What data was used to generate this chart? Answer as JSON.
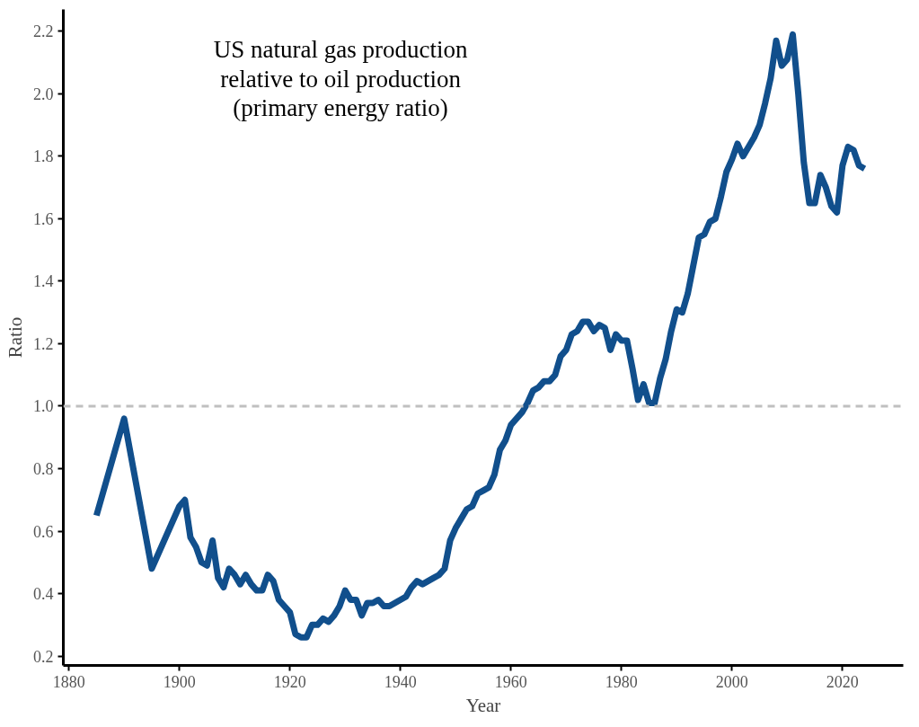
{
  "chart_data": {
    "type": "line",
    "title": "US natural gas production relative to oil production",
    "subtitle": "(primary energy ratio)",
    "xlabel": "Year",
    "ylabel": "Ratio",
    "x": [
      1885,
      1890,
      1895,
      1900,
      1901,
      1902,
      1903,
      1904,
      1905,
      1906,
      1907,
      1908,
      1909,
      1910,
      1911,
      1912,
      1913,
      1914,
      1915,
      1916,
      1917,
      1918,
      1919,
      1920,
      1921,
      1922,
      1923,
      1924,
      1925,
      1926,
      1927,
      1928,
      1929,
      1930,
      1931,
      1932,
      1933,
      1934,
      1935,
      1936,
      1937,
      1938,
      1939,
      1940,
      1941,
      1942,
      1943,
      1944,
      1945,
      1946,
      1947,
      1948,
      1949,
      1950,
      1951,
      1952,
      1953,
      1954,
      1955,
      1956,
      1957,
      1958,
      1959,
      1960,
      1961,
      1962,
      1963,
      1964,
      1965,
      1966,
      1967,
      1968,
      1969,
      1970,
      1971,
      1972,
      1973,
      1974,
      1975,
      1976,
      1977,
      1978,
      1979,
      1980,
      1981,
      1982,
      1983,
      1984,
      1985,
      1986,
      1987,
      1988,
      1989,
      1990,
      1991,
      1992,
      1993,
      1994,
      1995,
      1996,
      1997,
      1998,
      1999,
      2000,
      2001,
      2002,
      2003,
      2004,
      2005,
      2006,
      2007,
      2008,
      2009,
      2010,
      2011,
      2012,
      2013,
      2014,
      2015,
      2016,
      2017,
      2018,
      2019,
      2020,
      2021,
      2022,
      2023,
      2024
    ],
    "series": [
      {
        "color": "#114f8c",
        "values": [
          0.65,
          0.96,
          0.48,
          0.68,
          0.7,
          0.58,
          0.55,
          0.5,
          0.49,
          0.57,
          0.45,
          0.42,
          0.48,
          0.46,
          0.43,
          0.46,
          0.43,
          0.41,
          0.41,
          0.46,
          0.44,
          0.38,
          0.36,
          0.34,
          0.27,
          0.26,
          0.26,
          0.3,
          0.3,
          0.32,
          0.31,
          0.33,
          0.36,
          0.41,
          0.38,
          0.38,
          0.33,
          0.37,
          0.37,
          0.38,
          0.36,
          0.36,
          0.37,
          0.38,
          0.39,
          0.42,
          0.44,
          0.43,
          0.44,
          0.45,
          0.46,
          0.48,
          0.57,
          0.61,
          0.64,
          0.67,
          0.68,
          0.72,
          0.73,
          0.74,
          0.78,
          0.86,
          0.89,
          0.94,
          0.96,
          0.98,
          1.01,
          1.05,
          1.06,
          1.08,
          1.08,
          1.1,
          1.16,
          1.18,
          1.23,
          1.24,
          1.27,
          1.27,
          1.24,
          1.26,
          1.25,
          1.18,
          1.23,
          1.21,
          1.21,
          1.12,
          1.02,
          1.07,
          1.01,
          1.01,
          1.09,
          1.15,
          1.24,
          1.31,
          1.3,
          1.36,
          1.45,
          1.54,
          1.55,
          1.59,
          1.6,
          1.67,
          1.75,
          1.79,
          1.84,
          1.8,
          1.83,
          1.86,
          1.9,
          1.97,
          2.05,
          2.17,
          2.09,
          2.11,
          2.19,
          2.0,
          1.78,
          1.65,
          1.65,
          1.74,
          1.7,
          1.64,
          1.62,
          1.77,
          1.83,
          1.82,
          1.77,
          1.76
        ]
      }
    ],
    "xlim": [
      1879,
      2031
    ],
    "xticks": [
      1880,
      1900,
      1920,
      1940,
      1960,
      1980,
      2000,
      2020
    ],
    "ylim": [
      0.17,
      2.27
    ],
    "yticks": [
      {
        "value": 0.2,
        "label": "0.2"
      },
      {
        "value": 0.4,
        "label": "0.4"
      },
      {
        "value": 0.6,
        "label": "0.6"
      },
      {
        "value": 0.8,
        "label": "0.8"
      },
      {
        "value": 1.0,
        "label": "1.0"
      },
      {
        "value": 1.2,
        "label": "1.2"
      },
      {
        "value": 1.4,
        "label": "1.4"
      },
      {
        "value": 1.6,
        "label": "1.6"
      },
      {
        "value": 1.8,
        "label": "1.8"
      },
      {
        "value": 2.0,
        "label": "2.0"
      },
      {
        "value": 2.2,
        "label": "2.2"
      }
    ],
    "ref_lines": [
      {
        "axis": "y",
        "value": 1.0,
        "color": "#c0c0c0",
        "line_style": "dashed"
      }
    ],
    "grid": false
  }
}
